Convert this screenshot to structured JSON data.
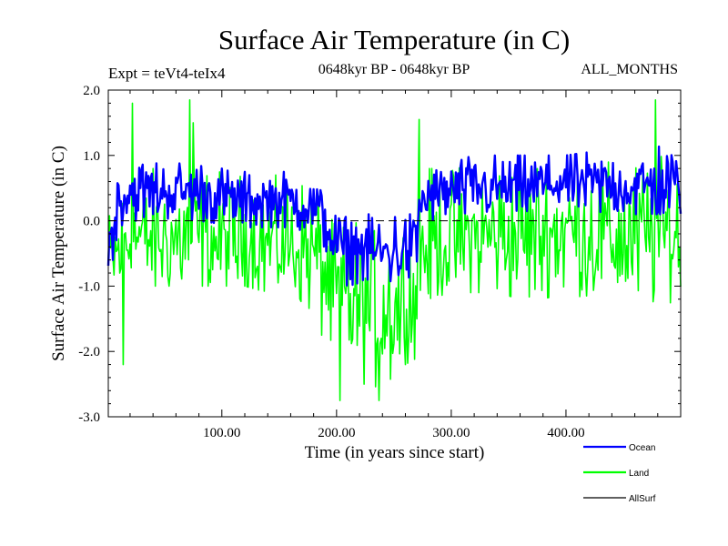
{
  "header": {
    "title": "Surface Air Temperature (in C)",
    "experiment": "Expt = teVt4-teIx4",
    "period": "0648kyr BP - 0648kyr BP",
    "months": "ALL_MONTHS"
  },
  "chart_data": {
    "type": "line",
    "xlabel": "Time (in years since start)",
    "ylabel": "Surface Air Temperature (in C)",
    "xlim": [
      1,
      500
    ],
    "ylim": [
      -3.0,
      2.0
    ],
    "x_ticks": [
      100,
      200,
      300,
      400
    ],
    "x_tick_labels": [
      "100.00",
      "200.00",
      "300.00",
      "400.00"
    ],
    "y_ticks": [
      2.0,
      1.0,
      0.0,
      -1.0,
      -2.0,
      -3.0
    ],
    "y_tick_labels": [
      "2.0",
      "1.0",
      "0.0",
      "-1.0",
      "-2.0",
      "-3.0"
    ],
    "zero_reference_line": "dashed",
    "legend_position": "bottom-right",
    "series": [
      {
        "name": "Land",
        "color": "#00ff00",
        "x": [
          1,
          20,
          40,
          60,
          80,
          100,
          120,
          140,
          160,
          180,
          190,
          200,
          210,
          220,
          230,
          240,
          250,
          260,
          270,
          272,
          280,
          300,
          320,
          340,
          360,
          380,
          400,
          420,
          440,
          460,
          480,
          500
        ],
        "values": [
          -0.7,
          -0.25,
          -0.3,
          -0.3,
          -0.25,
          -0.35,
          -0.3,
          -0.35,
          -0.35,
          -0.5,
          -0.8,
          -1.2,
          -1.25,
          -1.3,
          -1.3,
          -1.3,
          -1.3,
          -1.25,
          -1.2,
          -0.5,
          -0.35,
          -0.3,
          -0.3,
          -0.2,
          -0.25,
          -0.2,
          -0.15,
          -0.2,
          -0.25,
          -0.3,
          -0.2,
          -0.25
        ],
        "range_low": [
          -1.2,
          -1.1,
          -1.0,
          -1.0,
          -1.0,
          -1.0,
          -1.0,
          -1.1,
          -1.1,
          -1.4,
          -1.9,
          -2.4,
          -2.6,
          -2.5,
          -2.5,
          -2.6,
          -2.4,
          -2.2,
          -2.1,
          -1.4,
          -1.2,
          -1.1,
          -1.1,
          -1.1,
          -1.2,
          -1.2,
          -1.1,
          -1.2,
          -1.2,
          -1.4,
          -1.2,
          -1.3
        ],
        "range_high": [
          0.4,
          0.8,
          0.8,
          0.9,
          1.0,
          0.8,
          0.7,
          0.7,
          0.7,
          0.5,
          0.2,
          -0.1,
          -0.1,
          0.0,
          0.0,
          -0.1,
          0.0,
          0.1,
          0.2,
          1.0,
          0.8,
          0.8,
          0.9,
          0.9,
          0.9,
          0.9,
          1.0,
          0.9,
          0.9,
          0.8,
          1.0,
          0.9
        ],
        "extremes": [
          {
            "x": 14,
            "y": -2.2
          },
          {
            "x": 22,
            "y": 1.8
          },
          {
            "x": 72,
            "y": 1.85
          },
          {
            "x": 75,
            "y": 1.5
          },
          {
            "x": 203,
            "y": -2.75
          },
          {
            "x": 237,
            "y": -2.75
          },
          {
            "x": 272,
            "y": 1.55
          },
          {
            "x": 478,
            "y": 1.85
          }
        ]
      },
      {
        "name": "Ocean",
        "color": "#0000ff",
        "x": [
          1,
          10,
          20,
          40,
          60,
          80,
          100,
          120,
          140,
          160,
          180,
          190,
          200,
          210,
          220,
          230,
          240,
          250,
          260,
          270,
          272,
          280,
          300,
          320,
          340,
          360,
          380,
          400,
          420,
          440,
          460,
          480,
          500
        ],
        "values": [
          -0.5,
          0.3,
          0.45,
          0.45,
          0.45,
          0.45,
          0.35,
          0.3,
          0.3,
          0.3,
          0.2,
          0.0,
          -0.4,
          -0.45,
          -0.45,
          -0.45,
          -0.5,
          -0.45,
          -0.45,
          -0.4,
          0.25,
          0.35,
          0.45,
          0.5,
          0.5,
          0.5,
          0.55,
          0.6,
          0.55,
          0.55,
          0.5,
          0.55,
          0.55
        ],
        "range_low": [
          -1.0,
          -0.1,
          0.0,
          0.0,
          0.05,
          0.0,
          -0.05,
          -0.1,
          -0.1,
          -0.1,
          -0.2,
          -0.5,
          -0.9,
          -1.0,
          -0.95,
          -1.0,
          -1.1,
          -1.0,
          -1.0,
          -0.9,
          -0.1,
          0.0,
          0.05,
          0.1,
          0.1,
          0.1,
          0.1,
          0.15,
          0.1,
          0.1,
          0.1,
          0.1,
          0.1
        ],
        "range_high": [
          0.2,
          0.8,
          0.9,
          0.9,
          0.9,
          0.9,
          0.8,
          0.75,
          0.75,
          0.75,
          0.6,
          0.4,
          0.1,
          0.05,
          0.1,
          0.1,
          0.05,
          0.1,
          0.1,
          0.1,
          0.6,
          0.8,
          0.9,
          1.0,
          1.0,
          1.0,
          1.0,
          1.0,
          1.05,
          1.0,
          1.0,
          1.35,
          1.0
        ]
      },
      {
        "name": "AllSurf",
        "color": "#000000",
        "x": [
          1,
          500
        ],
        "values": [
          0.0,
          0.0
        ]
      }
    ],
    "legend_order": [
      "Ocean",
      "Land",
      "AllSurf"
    ]
  }
}
